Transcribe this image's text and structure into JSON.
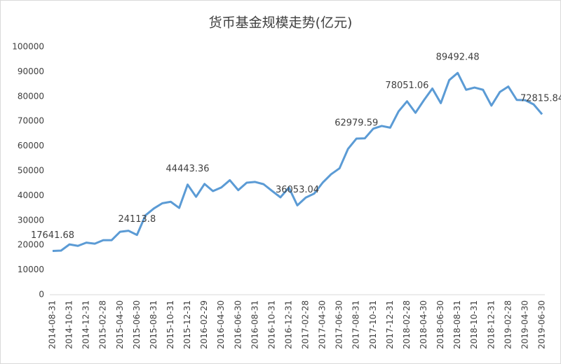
{
  "chart_data": {
    "type": "line",
    "title": "货币基金规模走势(亿元)",
    "color": "#5b9bd5",
    "categories": [
      "2014-08-31",
      null,
      "2014-10-31",
      null,
      "2014-12-31",
      null,
      "2015-02-28",
      null,
      "2015-04-30",
      null,
      "2015-06-30",
      null,
      "2015-08-31",
      null,
      "2015-10-31",
      null,
      "2015-12-31",
      null,
      "2016-02-29",
      null,
      "2016-04-30",
      null,
      "2016-06-30",
      null,
      "2016-08-31",
      null,
      "2016-10-31",
      null,
      "2016-12-31",
      null,
      "2017-02-28",
      null,
      "2017-04-30",
      null,
      "2017-06-30",
      null,
      "2017-08-31",
      null,
      "2017-10-31",
      null,
      "2017-12-31",
      null,
      "2018-02-28",
      null,
      "2018-04-30",
      null,
      "2018-06-30",
      null,
      "2018-08-31",
      null,
      "2018-10-31",
      null,
      "2018-12-31",
      null,
      "2019-02-28",
      null,
      "2019-04-30",
      null,
      "2019-06-30"
    ],
    "values": [
      17641.68,
      17800,
      20300,
      19700,
      21000,
      20600,
      22000,
      22000,
      25400,
      25800,
      24113.8,
      32000,
      34800,
      36900,
      37500,
      35000,
      44443.36,
      39500,
      44700,
      41800,
      43300,
      46200,
      42200,
      45200,
      45500,
      44600,
      41900,
      39300,
      43200,
      36053.04,
      39200,
      40800,
      45200,
      48600,
      51000,
      58800,
      62979.59,
      63100,
      67000,
      68100,
      67400,
      74000,
      78051.06,
      73400,
      78500,
      83200,
      77300,
      86600,
      89492.48,
      82700,
      83600,
      82700,
      76300,
      81800,
      84000,
      78600,
      78500,
      76800,
      72815.84
    ],
    "value_labels": [
      "17641.68",
      null,
      null,
      null,
      null,
      null,
      null,
      null,
      null,
      null,
      "24113.8",
      null,
      null,
      null,
      null,
      null,
      "44443.36",
      null,
      null,
      null,
      null,
      null,
      null,
      null,
      null,
      null,
      null,
      null,
      null,
      "36053.04",
      null,
      null,
      null,
      null,
      null,
      null,
      "62979.59",
      null,
      null,
      null,
      null,
      null,
      "78051.06",
      null,
      null,
      null,
      null,
      null,
      "89492.48",
      null,
      null,
      null,
      null,
      null,
      null,
      null,
      null,
      null,
      "72815.84"
    ],
    "ylim": [
      0,
      100000
    ],
    "yticks": [
      0,
      10000,
      20000,
      30000,
      40000,
      50000,
      60000,
      70000,
      80000,
      90000,
      100000
    ],
    "grid": false
  }
}
